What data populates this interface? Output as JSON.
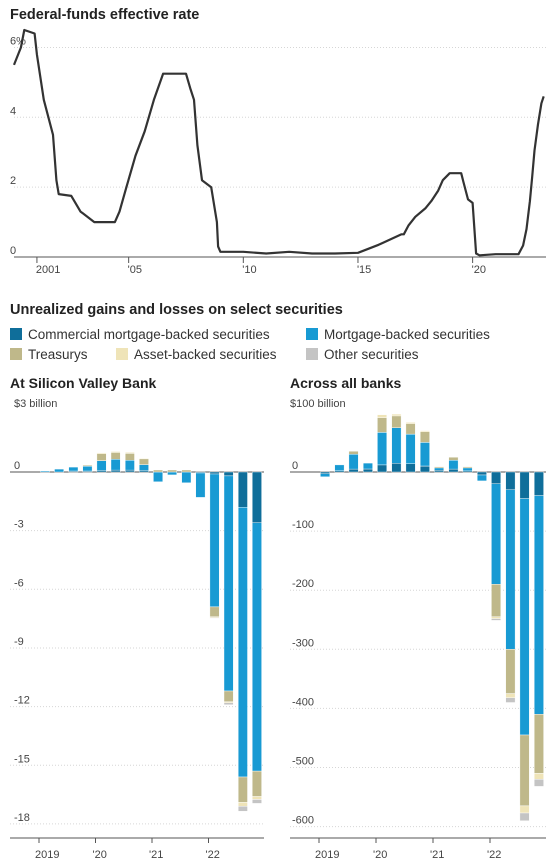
{
  "rate_chart": {
    "title": "Federal-funds effective rate",
    "y_ticks": [
      {
        "value": 6,
        "label": "6%"
      },
      {
        "value": 4,
        "label": "4"
      },
      {
        "value": 2,
        "label": "2"
      },
      {
        "value": 0,
        "label": "0"
      }
    ],
    "x_ticks": [
      {
        "value": 2001,
        "label": "2001"
      },
      {
        "value": 2005,
        "label": "'05"
      },
      {
        "value": 2010,
        "label": "'10"
      },
      {
        "value": 2015,
        "label": "'15"
      },
      {
        "value": 2020,
        "label": "'20"
      }
    ],
    "line_color": "#333333"
  },
  "securities": {
    "title": "Unrealized gains and losses on select securities",
    "legend": [
      {
        "label": "Commercial mortgage-backed securities",
        "color": "#0f6e9a"
      },
      {
        "label": "Mortgage-backed securities",
        "color": "#189ad3"
      },
      {
        "label": "Treasurys",
        "color": "#bfb88a"
      },
      {
        "label": "Asset-backed securities",
        "color": "#efe4b8"
      },
      {
        "label": "Other securities",
        "color": "#c4c4c4"
      }
    ],
    "svb_title": "At Silicon Valley Bank",
    "svb_unit": "$3 billion",
    "svb_y_ticks": [
      "0",
      "-3",
      "-6",
      "-9",
      "-12",
      "-15",
      "-18"
    ],
    "banks_title": "Across all banks",
    "banks_unit": "$100 billion",
    "banks_y_ticks": [
      "0",
      "-100",
      "-200",
      "-300",
      "-400",
      "-500",
      "-600"
    ],
    "x_ticks": [
      "2019",
      "'20",
      "'21",
      "'22"
    ]
  },
  "chart_data": [
    {
      "type": "line",
      "title": "Federal-funds effective rate",
      "x_unit": "year",
      "y_unit": "percent",
      "ylim": [
        0,
        6.5
      ],
      "xlim": [
        2000,
        2023.2
      ],
      "x": [
        2000.0,
        2000.3,
        2000.45,
        2000.9,
        2001.0,
        2001.3,
        2001.7,
        2001.85,
        2001.95,
        2002.5,
        2002.9,
        2003.0,
        2003.5,
        2004.4,
        2004.6,
        2004.9,
        2005.3,
        2005.7,
        2006.1,
        2006.5,
        2007.0,
        2007.5,
        2007.7,
        2007.85,
        2008.0,
        2008.2,
        2008.6,
        2008.85,
        2008.9,
        2009.0,
        2010.0,
        2011.0,
        2012.0,
        2013.0,
        2014.0,
        2015.0,
        2015.9,
        2016.0,
        2016.9,
        2017.0,
        2017.2,
        2017.5,
        2017.95,
        2018.2,
        2018.5,
        2018.7,
        2019.0,
        2019.5,
        2019.6,
        2019.8,
        2020.0,
        2020.15,
        2020.3,
        2021.0,
        2022.0,
        2022.2,
        2022.35,
        2022.5,
        2022.6,
        2022.7,
        2022.85,
        2023.0,
        2023.1
      ],
      "y": [
        5.5,
        6.0,
        6.5,
        6.4,
        5.8,
        4.5,
        3.5,
        2.2,
        1.8,
        1.75,
        1.3,
        1.25,
        1.0,
        1.0,
        1.3,
        2.0,
        2.9,
        3.6,
        4.5,
        5.25,
        5.25,
        5.25,
        4.8,
        4.5,
        3.2,
        2.2,
        2.0,
        1.0,
        0.3,
        0.15,
        0.15,
        0.1,
        0.15,
        0.1,
        0.1,
        0.12,
        0.35,
        0.38,
        0.65,
        0.65,
        0.9,
        1.15,
        1.4,
        1.6,
        1.9,
        2.2,
        2.4,
        2.4,
        2.15,
        1.65,
        1.55,
        0.1,
        0.05,
        0.08,
        0.08,
        0.33,
        0.8,
        1.6,
        2.3,
        3.05,
        3.8,
        4.4,
        4.6
      ]
    },
    {
      "type": "bar",
      "stacked": true,
      "title": "At Silicon Valley Bank",
      "y_unit": "billion dollars",
      "ylim": [
        -18,
        3
      ],
      "categories": [
        "2019 Q1",
        "2019 Q2",
        "2019 Q3",
        "2019 Q4",
        "2020 Q1",
        "2020 Q2",
        "2020 Q3",
        "2020 Q4",
        "2021 Q1",
        "2021 Q2",
        "2021 Q3",
        "2021 Q4",
        "2022 Q1",
        "2022 Q2",
        "2022 Q3",
        "2022 Q4"
      ],
      "series": [
        {
          "name": "Commercial mortgage-backed securities",
          "values": [
            0,
            0,
            0.05,
            0.05,
            0.08,
            0.1,
            0.1,
            0.08,
            0,
            0,
            0,
            -0.05,
            -0.1,
            -0.2,
            -1.8,
            -2.6
          ]
        },
        {
          "name": "Mortgage-backed securities",
          "values": [
            0.05,
            0.15,
            0.2,
            0.25,
            0.5,
            0.55,
            0.5,
            0.3,
            -0.5,
            -0.15,
            -0.55,
            -1.25,
            -6.8,
            -11.0,
            -13.8,
            -12.7
          ]
        },
        {
          "name": "Treasurys",
          "values": [
            0,
            0,
            0,
            0.05,
            0.35,
            0.35,
            0.35,
            0.3,
            0.1,
            0.1,
            0.1,
            0,
            -0.5,
            -0.55,
            -1.3,
            -1.3
          ]
        },
        {
          "name": "Asset-backed securities",
          "values": [
            0,
            0,
            0,
            0,
            0.05,
            0.05,
            0.05,
            0.02,
            0,
            0,
            0,
            0,
            -0.05,
            -0.05,
            -0.2,
            -0.15
          ]
        },
        {
          "name": "Other securities",
          "values": [
            0,
            0,
            0,
            0,
            0,
            0,
            0,
            0,
            0,
            0,
            0,
            0,
            -0.03,
            -0.1,
            -0.25,
            -0.2
          ]
        }
      ]
    },
    {
      "type": "bar",
      "stacked": true,
      "title": "Across all banks",
      "y_unit": "billion dollars",
      "ylim": [
        -600,
        100
      ],
      "categories": [
        "2019 Q1",
        "2019 Q2",
        "2019 Q3",
        "2019 Q4",
        "2020 Q1",
        "2020 Q2",
        "2020 Q3",
        "2020 Q4",
        "2021 Q1",
        "2021 Q2",
        "2021 Q3",
        "2021 Q4",
        "2022 Q1",
        "2022 Q2",
        "2022 Q3",
        "2022 Q4"
      ],
      "series": [
        {
          "name": "Commercial mortgage-backed securities",
          "values": [
            -3,
            2,
            5,
            5,
            12,
            15,
            14,
            10,
            3,
            5,
            2,
            -5,
            -20,
            -30,
            -45,
            -40
          ]
        },
        {
          "name": "Mortgage-backed securities",
          "values": [
            -5,
            10,
            25,
            10,
            55,
            60,
            50,
            40,
            4,
            15,
            5,
            -10,
            -170,
            -270,
            -400,
            -370
          ]
        },
        {
          "name": "Treasurys",
          "values": [
            0,
            0,
            5,
            0,
            25,
            20,
            18,
            18,
            2,
            5,
            2,
            0,
            -55,
            -75,
            -120,
            -100
          ]
        },
        {
          "name": "Asset-backed securities",
          "values": [
            0,
            0,
            0,
            0,
            5,
            3,
            2,
            2,
            0,
            0,
            0,
            0,
            -3,
            -7,
            -12,
            -10
          ]
        },
        {
          "name": "Other securities",
          "values": [
            0,
            0,
            0,
            0,
            0,
            0,
            0,
            0,
            0,
            0,
            0,
            0,
            -3,
            -8,
            -13,
            -12
          ]
        }
      ]
    }
  ]
}
